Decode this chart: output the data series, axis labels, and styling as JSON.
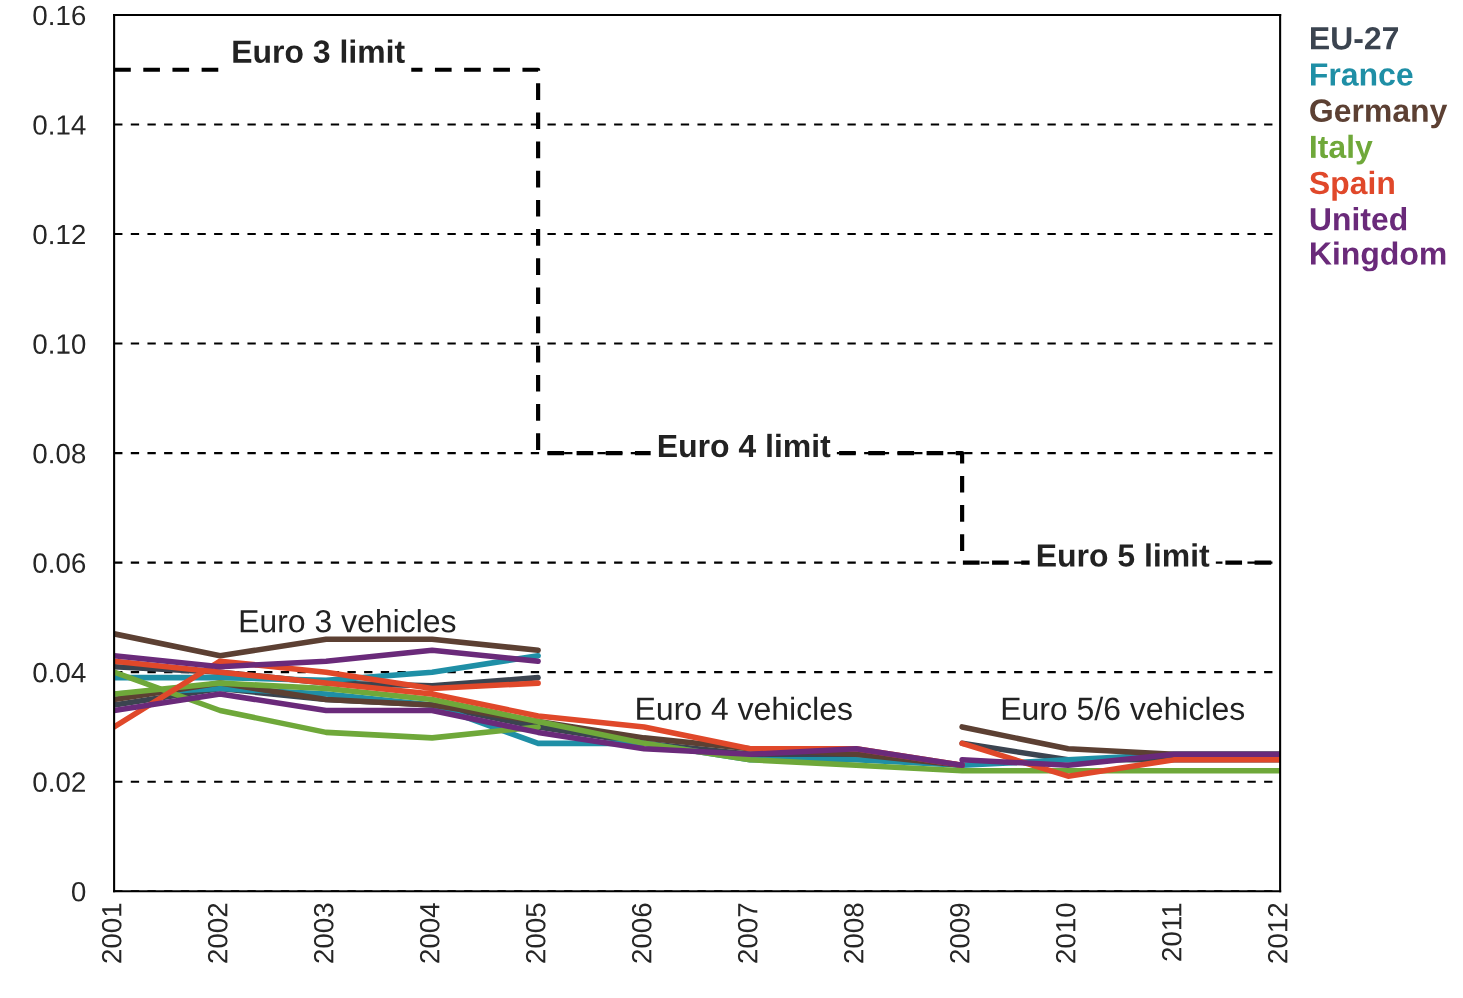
{
  "chart_data": {
    "type": "line",
    "xlim": [
      2001,
      2012
    ],
    "xticks": [
      2001,
      2002,
      2003,
      2004,
      2005,
      2006,
      2007,
      2008,
      2009,
      2010,
      2011,
      2012
    ],
    "ylim": [
      0,
      0.16
    ],
    "yticks": [
      0,
      {
        "value": 0.02,
        "label": "0.02"
      },
      {
        "value": 0.04,
        "label": "0.04"
      },
      {
        "value": 0.06,
        "label": "0.06"
      },
      {
        "value": 0.08,
        "label": "0.08"
      },
      {
        "value": 0.1,
        "label": "0.10"
      },
      {
        "value": 0.12,
        "label": "0.12"
      },
      {
        "value": 0.14,
        "label": "0.14"
      },
      {
        "value": 0.16,
        "label": "0.16"
      }
    ],
    "grid": "y",
    "legend": "top right",
    "marker": "none",
    "line_style": "solid",
    "series": [
      {
        "name": "EU-27",
        "color": "#3b4450",
        "x": [
          2001,
          2002,
          2003,
          2004,
          2005,
          null,
          2001,
          2002,
          2003,
          2004,
          2005,
          2006,
          2007,
          2008,
          2009,
          null,
          2009,
          2010,
          2011,
          2012
        ],
        "values": [
          0.041,
          0.04,
          0.038,
          0.0375,
          0.039,
          null,
          0.034,
          0.037,
          0.035,
          0.034,
          0.03,
          0.027,
          0.025,
          0.025,
          0.023,
          null,
          0.027,
          0.024,
          0.024,
          0.024
        ]
      },
      {
        "name": "France",
        "color": "#1f8fa6",
        "x": [
          2001,
          2002,
          2003,
          2004,
          2005,
          null,
          2001,
          2002,
          2003,
          2004,
          2005,
          2006,
          2007,
          2008,
          2009,
          null,
          2009,
          2010,
          2011,
          2012
        ],
        "values": [
          0.039,
          0.039,
          0.0385,
          0.04,
          0.043,
          null,
          0.036,
          0.037,
          0.036,
          0.034,
          0.027,
          0.027,
          0.024,
          0.024,
          0.023,
          null,
          0.023,
          0.024,
          0.025,
          0.025
        ]
      },
      {
        "name": "Germany",
        "color": "#5c4033",
        "x": [
          2001,
          2002,
          2003,
          2004,
          2005,
          null,
          2001,
          2002,
          2003,
          2004,
          2005,
          2006,
          2007,
          2008,
          2009,
          null,
          2009,
          2010,
          2011,
          2012
        ],
        "values": [
          0.047,
          0.043,
          0.046,
          0.046,
          0.044,
          null,
          0.035,
          0.038,
          0.035,
          0.034,
          0.031,
          0.028,
          0.026,
          0.025,
          0.023,
          null,
          0.03,
          0.026,
          0.025,
          0.025
        ]
      },
      {
        "name": "Italy",
        "color": "#6fa83a",
        "x": [
          2001,
          2002,
          2003,
          2004,
          2005,
          null,
          2001,
          2002,
          2003,
          2004,
          2005,
          2006,
          2007,
          2008,
          2009,
          null,
          2009,
          2010,
          2011,
          2012
        ],
        "values": [
          0.04,
          0.033,
          0.029,
          0.028,
          0.03,
          null,
          0.036,
          0.038,
          0.037,
          0.035,
          0.031,
          0.027,
          0.024,
          0.023,
          0.022,
          null,
          0.022,
          0.022,
          0.022,
          0.022
        ]
      },
      {
        "name": "Spain",
        "color": "#e0482a",
        "x": [
          2001,
          2002,
          2003,
          2004,
          2005,
          null,
          2001,
          2002,
          2003,
          2004,
          2005,
          2006,
          2007,
          2008,
          2009,
          null,
          2009,
          2010,
          2011,
          2012
        ],
        "values": [
          0.03,
          0.042,
          0.04,
          0.037,
          0.038,
          null,
          0.042,
          0.04,
          0.038,
          0.036,
          0.032,
          0.03,
          0.026,
          0.026,
          0.023,
          null,
          0.027,
          0.021,
          0.024,
          0.024
        ]
      },
      {
        "name": "United\nKingdom",
        "color": "#6a2a7a",
        "x": [
          2001,
          2002,
          2003,
          2004,
          2005,
          null,
          2001,
          2002,
          2003,
          2004,
          2005,
          2006,
          2007,
          2008,
          2009,
          null,
          2009,
          2010,
          2011,
          2012
        ],
        "values": [
          0.043,
          0.041,
          0.042,
          0.044,
          0.042,
          null,
          0.033,
          0.036,
          0.033,
          0.033,
          0.029,
          0.026,
          0.025,
          0.026,
          0.023,
          null,
          0.024,
          0.023,
          0.025,
          0.025
        ]
      },
      {
        "type": "step",
        "color": "#000000",
        "line_style": "dashed",
        "x": [
          2001,
          2005,
          2009,
          2012
        ],
        "values": [
          0.15,
          0.08,
          0.06,
          0.06
        ]
      }
    ],
    "annotations": [
      "Euro 3 limit",
      "Euro 4 limit",
      "Euro 5 limit",
      "Euro 3 vehicles",
      "Euro 4 vehicles",
      "Euro 5/6 vehicles"
    ]
  }
}
